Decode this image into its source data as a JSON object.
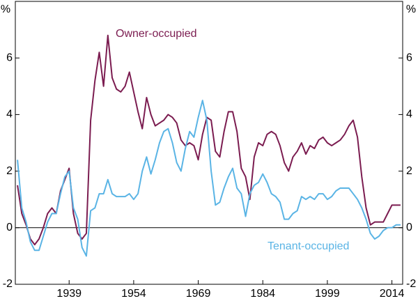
{
  "chart_data": {
    "type": "line",
    "annotations": [
      "Owner-occupied",
      "Tenant-occupied"
    ],
    "y_unit": "%",
    "y2_unit": "%",
    "x": [
      1927,
      1928,
      1929,
      1930,
      1931,
      1932,
      1933,
      1934,
      1935,
      1936,
      1937,
      1938,
      1939,
      1940,
      1941,
      1942,
      1943,
      1944,
      1945,
      1946,
      1947,
      1948,
      1949,
      1950,
      1951,
      1952,
      1953,
      1954,
      1955,
      1956,
      1957,
      1958,
      1959,
      1960,
      1961,
      1962,
      1963,
      1964,
      1965,
      1966,
      1967,
      1968,
      1969,
      1970,
      1971,
      1972,
      1973,
      1974,
      1975,
      1976,
      1977,
      1978,
      1979,
      1980,
      1981,
      1982,
      1983,
      1984,
      1985,
      1986,
      1987,
      1988,
      1989,
      1990,
      1991,
      1992,
      1993,
      1994,
      1995,
      1996,
      1997,
      1998,
      1999,
      2000,
      2001,
      2002,
      2003,
      2004,
      2005,
      2006,
      2007,
      2008,
      2009,
      2010,
      2011,
      2012,
      2013,
      2014,
      2015,
      2016
    ],
    "series": [
      {
        "name": "Owner-occupied",
        "color": "#7b1c50",
        "values": [
          1.5,
          0.5,
          0.1,
          -0.4,
          -0.6,
          -0.4,
          0.0,
          0.5,
          0.7,
          0.5,
          1.3,
          1.7,
          2.1,
          0.5,
          -0.2,
          -0.4,
          -0.2,
          3.8,
          5.2,
          6.2,
          5.0,
          6.8,
          5.3,
          4.9,
          4.8,
          5.0,
          5.5,
          4.8,
          4.1,
          3.5,
          4.6,
          4.0,
          3.6,
          3.7,
          3.8,
          4.0,
          3.9,
          3.7,
          3.1,
          2.9,
          3.0,
          2.9,
          2.4,
          3.3,
          3.9,
          3.8,
          2.7,
          2.5,
          3.4,
          4.1,
          4.1,
          3.4,
          2.1,
          1.8,
          1.0,
          2.5,
          3.0,
          2.9,
          3.3,
          3.4,
          3.3,
          2.9,
          2.3,
          2.0,
          2.5,
          2.7,
          3.0,
          2.6,
          2.9,
          2.8,
          3.1,
          3.2,
          3.0,
          2.9,
          3.0,
          3.1,
          3.3,
          3.6,
          3.8,
          3.2,
          1.8,
          0.7,
          0.1,
          0.2,
          0.2,
          0.2,
          0.5,
          0.8,
          0.8,
          0.8
        ]
      },
      {
        "name": "Tenant-occupied",
        "color": "#5ab4e5",
        "values": [
          2.4,
          0.7,
          0.2,
          -0.5,
          -0.8,
          -0.8,
          -0.3,
          0.2,
          0.5,
          0.5,
          1.2,
          1.8,
          2.0,
          0.7,
          0.3,
          -0.7,
          -1.0,
          0.6,
          0.7,
          1.2,
          1.2,
          1.7,
          1.2,
          1.1,
          1.1,
          1.1,
          1.2,
          1.0,
          1.2,
          2.0,
          2.5,
          1.9,
          2.4,
          3.0,
          3.4,
          3.5,
          3.0,
          2.3,
          2.0,
          2.8,
          3.4,
          3.2,
          3.9,
          4.5,
          3.8,
          2.0,
          0.8,
          0.9,
          1.4,
          1.8,
          2.1,
          1.4,
          1.2,
          0.4,
          1.2,
          1.5,
          1.6,
          1.9,
          1.6,
          1.2,
          1.1,
          0.9,
          0.3,
          0.3,
          0.5,
          0.6,
          1.1,
          1.0,
          1.1,
          1.0,
          1.2,
          1.2,
          1.0,
          1.1,
          1.3,
          1.4,
          1.4,
          1.4,
          1.2,
          1.0,
          0.7,
          0.3,
          -0.2,
          -0.4,
          -0.3,
          -0.1,
          0.0,
          0.0,
          0.1,
          0.1
        ]
      }
    ],
    "xlim": [
      1926.5,
      2016.5
    ],
    "xticks": [
      1939,
      1954,
      1969,
      1984,
      1999,
      2014
    ],
    "ylim": [
      -2,
      8
    ],
    "yticks": [
      -2,
      0,
      2,
      4,
      6
    ],
    "y2lim": [
      -2,
      8
    ],
    "y2ticks": [
      -2,
      0,
      2,
      4,
      6
    ],
    "zero_line": true,
    "grid": false
  }
}
